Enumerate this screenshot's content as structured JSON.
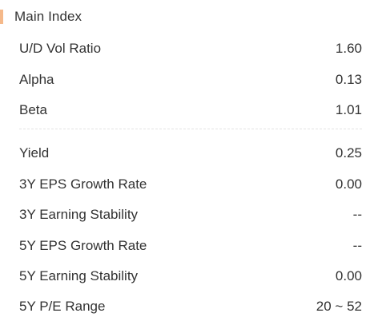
{
  "section": {
    "title": "Main Index",
    "accent_color": "#f5b98a"
  },
  "group1": [
    {
      "label": "U/D Vol Ratio",
      "value": "1.60"
    },
    {
      "label": "Alpha",
      "value": "0.13"
    },
    {
      "label": "Beta",
      "value": "1.01"
    }
  ],
  "group2": [
    {
      "label": "Yield",
      "value": "0.25"
    },
    {
      "label": "3Y EPS Growth Rate",
      "value": "0.00"
    },
    {
      "label": "3Y Earning Stability",
      "value": "--"
    },
    {
      "label": "5Y EPS Growth Rate",
      "value": "--"
    },
    {
      "label": "5Y Earning Stability",
      "value": "0.00"
    },
    {
      "label": "5Y P/E Range",
      "value": "20 ~ 52"
    }
  ]
}
